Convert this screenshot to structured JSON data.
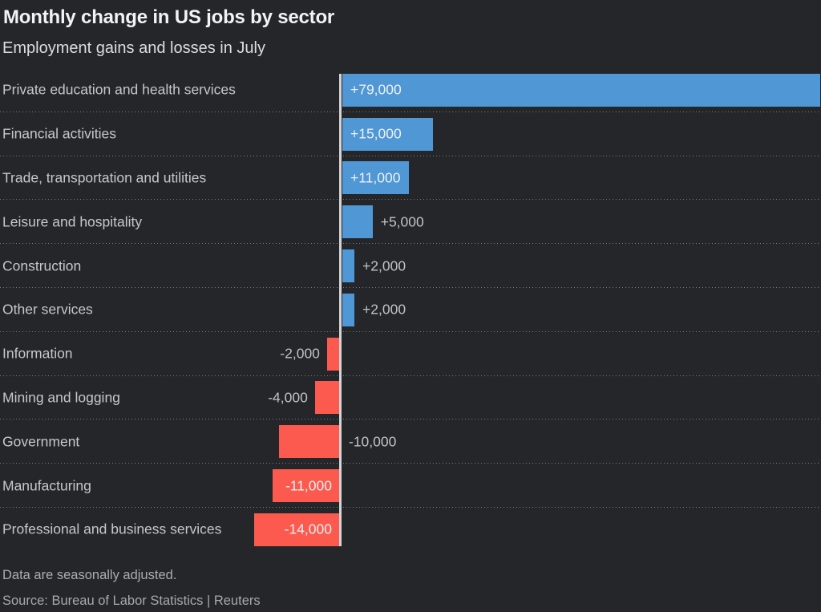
{
  "header": {
    "title": "Monthly change in US jobs by sector",
    "subtitle": "Employment gains and losses in July"
  },
  "footer": {
    "note": "Data are seasonally adjusted.",
    "source": "Source: Bureau of Labor Statistics | Reuters"
  },
  "chart_data": {
    "type": "bar",
    "orientation": "horizontal",
    "title": "Monthly change in US jobs by sector",
    "subtitle": "Employment gains and losses in July",
    "xlabel": "",
    "ylabel": "",
    "xlim": [
      -14000,
      79000
    ],
    "grid": "dotted row separators",
    "legend": "none",
    "categories": [
      "Private education and health services",
      "Financial activities",
      "Trade, transportation and utilities",
      "Leisure and hospitality",
      "Construction",
      "Other services",
      "Information",
      "Mining and logging",
      "Government",
      "Manufacturing",
      "Professional and business services"
    ],
    "values": [
      79000,
      15000,
      11000,
      5000,
      2000,
      2000,
      -2000,
      -4000,
      -10000,
      -11000,
      -14000
    ],
    "value_labels": [
      "+79,000",
      "+15,000",
      "+11,000",
      "+5,000",
      "+2,000",
      "+2,000",
      "-2,000",
      "-4,000",
      "-10,000",
      "-11,000",
      "-14,000"
    ],
    "label_positions": [
      "inside-start",
      "inside-start",
      "inside-start",
      "outside-end",
      "outside-end",
      "outside-end",
      "outside-start",
      "outside-start",
      "outside-zero-right",
      "inside-end",
      "inside-end"
    ],
    "colors": {
      "positive_bar": "#4f97d5",
      "negative_bar": "#fc5a4e",
      "background": "#242629",
      "zero_line": "#d2d4d6",
      "category_text": "#c5c8ca",
      "outside_label_text": "#c0c3c5",
      "inside_label_text": "#eef1f3"
    }
  }
}
